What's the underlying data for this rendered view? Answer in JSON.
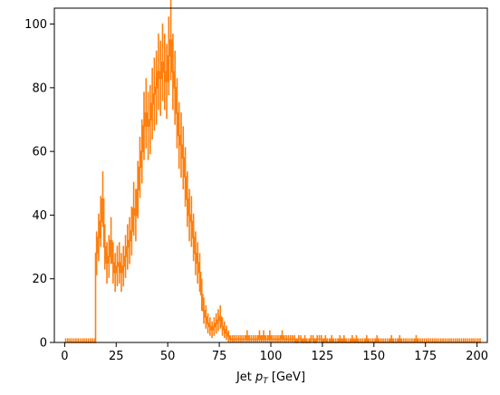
{
  "chart_data": {
    "type": "histogram",
    "xlabel": "Jet p_T [GeV]",
    "xlabel_text": "Jet ",
    "xlabel_symbol": "p",
    "xlabel_subscript": "T",
    "xlabel_unit": " [GeV]",
    "xlim": [
      -5,
      205
    ],
    "ylim": [
      0,
      105
    ],
    "xticks": [
      0,
      25,
      50,
      75,
      100,
      125,
      150,
      175,
      200
    ],
    "yticks": [
      0,
      20,
      40,
      60,
      80,
      100
    ],
    "bin_width": 1,
    "bin_start": 0,
    "values": [
      0,
      0,
      0,
      0,
      0,
      0,
      0,
      0,
      0,
      0,
      0,
      0,
      0,
      0,
      0,
      28,
      33,
      38,
      45,
      30,
      25,
      27,
      32,
      25,
      22,
      24,
      25,
      22,
      24,
      27,
      30,
      32,
      35,
      42,
      40,
      48,
      55,
      60,
      68,
      72,
      68,
      70,
      75,
      78,
      80,
      85,
      83,
      88,
      85,
      82,
      90,
      95,
      85,
      80,
      72,
      65,
      62,
      58,
      52,
      45,
      40,
      38,
      33,
      28,
      25,
      22,
      15,
      10,
      8,
      6,
      5,
      4,
      5,
      6,
      7,
      8,
      5,
      4,
      3,
      2,
      1,
      1,
      1,
      1,
      1,
      1,
      1,
      1,
      2,
      1,
      1,
      1,
      1,
      1,
      2,
      1,
      2,
      1,
      1,
      2,
      1,
      1,
      1,
      1,
      1,
      2,
      1,
      1,
      1,
      1,
      1,
      1,
      0,
      1,
      1,
      0,
      1,
      0,
      0,
      1,
      1,
      0,
      1,
      1,
      1,
      0,
      1,
      0,
      0,
      1,
      0,
      0,
      0,
      1,
      0,
      1,
      0,
      0,
      0,
      1,
      0,
      1,
      0,
      0,
      0,
      0,
      1,
      0,
      0,
      0,
      0,
      1,
      0,
      0,
      0,
      0,
      0,
      0,
      1,
      0,
      0,
      0,
      1,
      0,
      0,
      0,
      0,
      0,
      0,
      0,
      1,
      0,
      0,
      0,
      0,
      0,
      0,
      0,
      0,
      0,
      0,
      0,
      0,
      0,
      0,
      0,
      0,
      0,
      0,
      0,
      0,
      0,
      0,
      0,
      0,
      0,
      0,
      0,
      0,
      0,
      0,
      0
    ],
    "color": "#ff7f0e",
    "grid": false,
    "legend": "none"
  }
}
